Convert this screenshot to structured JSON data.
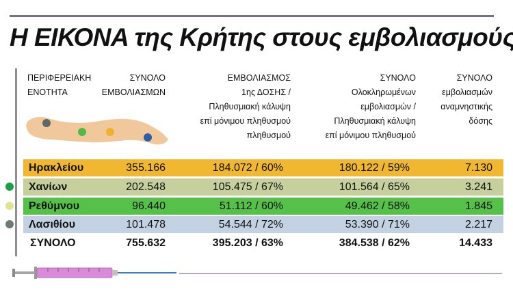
{
  "title": "Η ΕΙΚΟΝΑ της Κρήτης στους εμβολιασμούς",
  "headers": {
    "unit": "ΠΕΡΙΦΕΡΕΙΑΚΗ ΕΝΟΤΗΤΑ",
    "total": "ΣΥΝΟΛΟ ΕΜΒΟΛΙΑΣΜΩΝ",
    "first_dose": "ΕΜΒΟΛΙΑΣΜΟΣ 1ης ΔΟΣΗΣ / Πληθυσμιακή κάλυψη επί μόνιμου πληθυσμού πληθυσμού",
    "completed": "ΣΥΝΟΛΟ Ολοκληρωμένων εμβολιασμών / Πληθυσμιακή κάλυψη επί μόνιμου πληθυσμού",
    "booster": "ΣΥΝΟΛΟ εμβολιασμών αναμνηστικής δόσης"
  },
  "colors": {
    "heraklion": "#f2b731",
    "chania": "#c7cf9c",
    "rethymno": "#56c148",
    "lasithi": "#c3d2e2",
    "map_land": "#f0c89b",
    "dot_chania": "#5d6963",
    "dot_rethymno": "#52b848",
    "dot_heraklion": "#f0b22c",
    "dot_lasithi": "#2d5da8",
    "bullet_heraklion": "#f0b22c",
    "bullet_chania": "#1aa04a",
    "bullet_rethymno": "#dfe58e",
    "bullet_lasithi": "#6e7a73"
  },
  "chart_data": {
    "type": "table",
    "title": "Η ΕΙΚΟΝΑ της Κρήτης στους εμβολιασμούς",
    "columns": [
      "ΠΕΡΙΦΕΡΕΙΑΚΗ ΕΝΟΤΗΤΑ",
      "ΣΥΝΟΛΟ ΕΜΒΟΛΙΑΣΜΩΝ",
      "ΕΜΒΟΛΙΑΣΜΟΣ 1ης ΔΟΣΗΣ / Πληθυσμιακή κάλυψη επί μόνιμου πληθυσμού πληθυσμού",
      "ΣΥΝΟΛΟ Ολοκληρωμένων εμβολιασμών / Πληθυσμιακή κάλυψη επί μόνιμου πληθυσμού",
      "ΣΥΝΟΛΟ εμβολιασμών αναμνηστικής δόσης"
    ],
    "rows": [
      {
        "name": "Ηρακλείου",
        "total": "355.166",
        "first_dose": "184.072 / 60%",
        "completed": "180.122 / 59%",
        "booster": "7.130"
      },
      {
        "name": "Χανίων",
        "total": "202.548",
        "first_dose": "105.475 / 67%",
        "completed": "101.564 / 65%",
        "booster": "3.241"
      },
      {
        "name": "Ρεθύμνου",
        "total": "96.440",
        "first_dose": "51.112 / 60%",
        "completed": "49.462 / 58%",
        "booster": "1.845"
      },
      {
        "name": "Λασιθίου",
        "total": "101.478",
        "first_dose": "54.544 / 72%",
        "completed": "53.390 / 71%",
        "booster": "2.217"
      }
    ],
    "total_row": {
      "name": "ΣΥΝΟΛΟ",
      "total": "755.632",
      "first_dose": "395.203 / 63%",
      "completed": "384.538 / 62%",
      "booster": "14.433"
    }
  }
}
